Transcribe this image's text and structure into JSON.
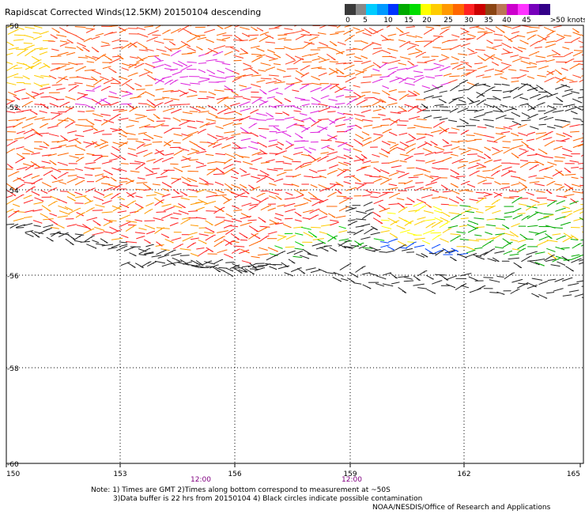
{
  "title": "Rapidscat Corrected Winds(12.5KM) 20150104 descending",
  "legend": {
    "colors": [
      "#3a3a3a",
      "#888888",
      "#00ccff",
      "#0099ff",
      "#0033ff",
      "#00aa00",
      "#00dd00",
      "#ffff00",
      "#ffcc00",
      "#ff9900",
      "#ff6600",
      "#ff2222",
      "#cc0000",
      "#8b4513",
      "#bb7755",
      "#cc00cc",
      "#ff33ff",
      "#7700bb",
      "#330088"
    ],
    "labels": [
      "0",
      "5",
      "10",
      "15",
      "20",
      "25",
      "30",
      "35",
      "40",
      "45",
      ">50 knots"
    ]
  },
  "axes": {
    "lon_labels": [
      "150",
      "153",
      "156",
      "159",
      "162",
      "165"
    ],
    "lat_labels": [
      "-50",
      "-52",
      "-54",
      "-56",
      "-58",
      "-60"
    ],
    "time_labels": [
      "12:00",
      "12:00"
    ]
  },
  "notes": {
    "line1": "Note: 1) Times are GMT 2)Times along bottom correspond to measurement at ~50S",
    "line2": "3)Data buffer is 22 hrs from 20150104 4) Black circles indicate possible contamination"
  },
  "credit": "NOAA/NESDIS/Office of Research and Applications"
}
